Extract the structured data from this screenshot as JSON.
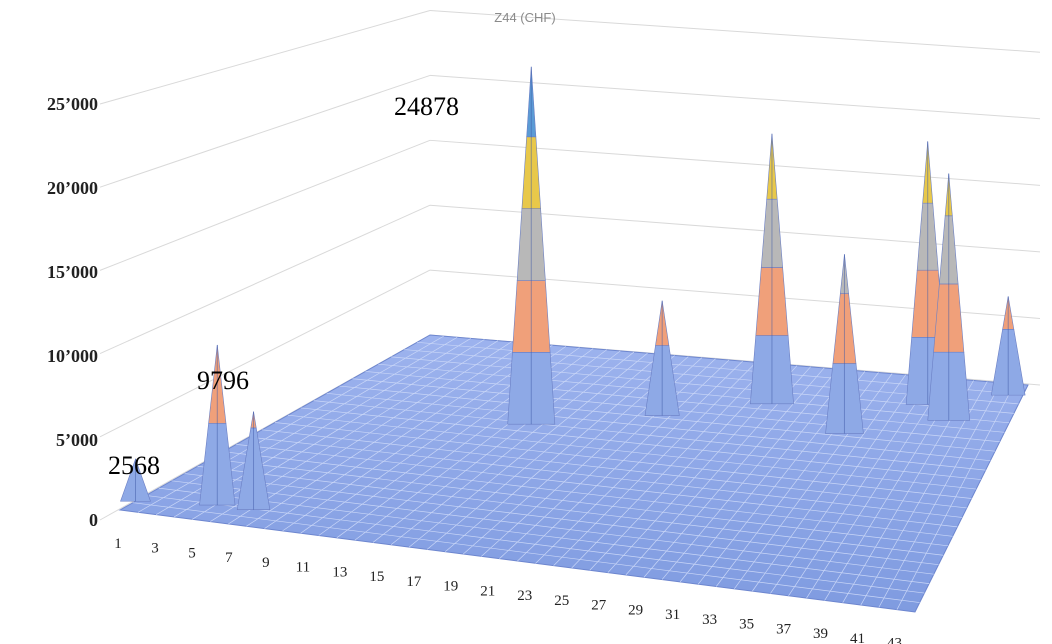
{
  "chart_data": {
    "type": "surface-3d",
    "title": "Z44 (CHF)",
    "y_ticks": [
      "0",
      "5’000",
      "10’000",
      "15’000",
      "20’000",
      "25’000"
    ],
    "y_values": [
      0,
      5000,
      10000,
      15000,
      20000,
      25000
    ],
    "ylim": [
      0,
      25000
    ],
    "x_ticks": [
      "1",
      "3",
      "5",
      "7",
      "9",
      "11",
      "13",
      "15",
      "17",
      "19",
      "21",
      "23",
      "25",
      "27",
      "29",
      "31",
      "33",
      "35",
      "37",
      "39",
      "41",
      "43"
    ],
    "band_colors": [
      "#8ea9e6",
      "#f0a07a",
      "#b8b8b8",
      "#e8c84a",
      "#5b9bd5"
    ],
    "data_labels": [
      {
        "text": "2568",
        "value": 2568
      },
      {
        "text": "9796",
        "value": 9796
      },
      {
        "text": "24878",
        "value": 24878
      }
    ],
    "peaks": [
      {
        "x": 1,
        "value": 2568
      },
      {
        "x": 5,
        "value": 9796
      },
      {
        "x": 7,
        "value": 6000
      },
      {
        "x": 15,
        "value": 24878
      },
      {
        "x": 28,
        "value": 19800
      },
      {
        "x": 38,
        "value": 19600
      },
      {
        "x": 40,
        "value": 18100
      },
      {
        "x": 34,
        "value": 12800
      },
      {
        "x": 22,
        "value": 8200
      },
      {
        "x": 43,
        "value": 7500
      }
    ],
    "grid": true
  }
}
